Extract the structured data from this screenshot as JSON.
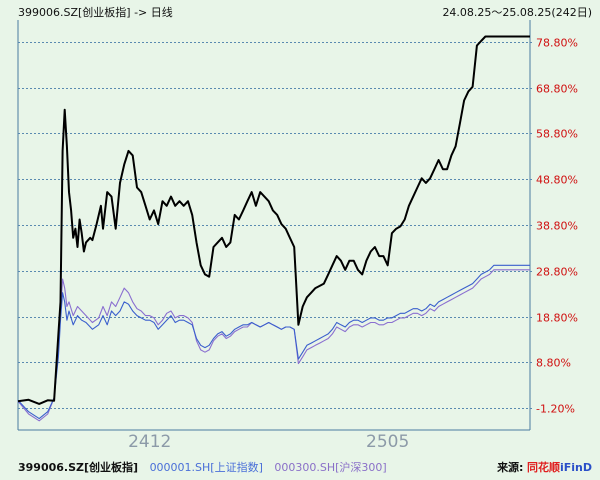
{
  "header": {
    "title": "399006.SZ[创业板指] -> 日线",
    "range": "24.08.25～25.08.25(242日)"
  },
  "footer": {
    "main_series": "399006.SZ[创业板指]",
    "series2": "000001.SH[上证指数]",
    "series3": "000300.SH[沪深300]",
    "source_label": "来源:",
    "source_brand": "同花顺",
    "source_brand2": "iFinD"
  },
  "colors": {
    "background": "#e8f5e8",
    "gridline": "#5a8ab0",
    "tick_text": "#d01010",
    "series_main": "#000000",
    "series_sh": "#3a5fcd",
    "series_hs300": "#8a6fd0"
  },
  "chart_data": {
    "type": "line",
    "yaxis_position": "right",
    "ylim": [
      -6.0,
      83.6
    ],
    "xlim": [
      0,
      241
    ],
    "yticks": [
      78.8,
      68.8,
      58.8,
      48.8,
      38.8,
      28.8,
      18.8,
      8.8,
      -1.2
    ],
    "ytick_labels": [
      "78.80%",
      "68.80%",
      "58.80%",
      "48.80%",
      "38.80%",
      "28.80%",
      "18.80%",
      "8.80%",
      "-1.20%"
    ],
    "xtick_positions": [
      62,
      174
    ],
    "xtick_labels": [
      "2412",
      "2505"
    ],
    "series": [
      {
        "key": "cyb",
        "name": "399006.SZ[创业板指]",
        "x": [
          0,
          5,
          10,
          14,
          17,
          19,
          20,
          21,
          22,
          23,
          24,
          25,
          26,
          27,
          28,
          29,
          30,
          31,
          32,
          34,
          35,
          37,
          39,
          40,
          42,
          44,
          46,
          48,
          50,
          52,
          54,
          56,
          58,
          60,
          62,
          64,
          66,
          68,
          70,
          72,
          74,
          76,
          78,
          80,
          82,
          84,
          86,
          88,
          90,
          92,
          94,
          96,
          98,
          100,
          102,
          104,
          106,
          108,
          110,
          112,
          114,
          116,
          118,
          120,
          122,
          124,
          126,
          128,
          130,
          132,
          134,
          136,
          138,
          140,
          142,
          144,
          146,
          148,
          150,
          152,
          154,
          156,
          158,
          160,
          162,
          164,
          166,
          168,
          170,
          172,
          174,
          176,
          178,
          180,
          182,
          184,
          186,
          188,
          190,
          192,
          194,
          196,
          198,
          200,
          202,
          204,
          206,
          208,
          210,
          212,
          214,
          216,
          218,
          220,
          222,
          224,
          226,
          228,
          230,
          232,
          234,
          236,
          238,
          240,
          241
        ],
        "y": [
          0.3,
          0.6,
          -0.3,
          0.5,
          0.4,
          15.0,
          22.0,
          55.0,
          64.0,
          56.0,
          46.0,
          42.0,
          36.0,
          38.0,
          34.0,
          40.0,
          37.0,
          33.0,
          35.0,
          36.0,
          35.5,
          39.0,
          43.0,
          38.0,
          46.0,
          45.0,
          38.0,
          48.0,
          52.0,
          55.0,
          54.0,
          47.0,
          46.0,
          43.0,
          40.0,
          42.0,
          39.0,
          44.0,
          43.0,
          45.0,
          43.0,
          44.0,
          43.0,
          44.0,
          41.0,
          35.0,
          30.0,
          28.0,
          27.5,
          34.0,
          35.0,
          36.0,
          34.0,
          35.0,
          41.0,
          40.0,
          42.0,
          44.0,
          46.0,
          43.0,
          46.0,
          45.0,
          44.0,
          42.0,
          41.0,
          39.0,
          38.0,
          36.0,
          34.0,
          17.0,
          21.0,
          23.0,
          24.0,
          25.0,
          25.5,
          26.0,
          28.0,
          30.0,
          32.0,
          31.0,
          29.0,
          31.0,
          31.0,
          29.0,
          28.0,
          31.0,
          33.0,
          34.0,
          32.0,
          32.0,
          30.0,
          37.0,
          38.0,
          38.5,
          40.0,
          43.0,
          45.0,
          47.0,
          49.0,
          48.0,
          49.0,
          51.0,
          53.0,
          51.0,
          51.0,
          54.0,
          56.0,
          61.0,
          66.0,
          68.0,
          69.0,
          78.0,
          79.0,
          80.0,
          80.0,
          80.0,
          80.0,
          80.0,
          80.0,
          80.0,
          80.0,
          80.0,
          80.0,
          80.0,
          80.0
        ]
      },
      {
        "key": "sh",
        "name": "000001.SH[上证指数]",
        "x": [
          0,
          5,
          10,
          14,
          17,
          19,
          20,
          21,
          22,
          23,
          24,
          26,
          28,
          30,
          32,
          35,
          38,
          40,
          42,
          44,
          46,
          48,
          50,
          52,
          54,
          56,
          58,
          60,
          62,
          64,
          66,
          68,
          70,
          72,
          74,
          76,
          78,
          80,
          82,
          84,
          86,
          88,
          90,
          92,
          94,
          96,
          98,
          100,
          102,
          104,
          106,
          108,
          110,
          112,
          114,
          116,
          118,
          120,
          122,
          124,
          126,
          128,
          130,
          132,
          134,
          136,
          138,
          140,
          142,
          144,
          146,
          148,
          150,
          152,
          154,
          156,
          158,
          160,
          162,
          164,
          166,
          168,
          170,
          172,
          174,
          176,
          178,
          180,
          182,
          184,
          186,
          188,
          190,
          192,
          194,
          196,
          198,
          200,
          202,
          204,
          206,
          208,
          210,
          212,
          214,
          216,
          218,
          220,
          222,
          224,
          226,
          228,
          230,
          232,
          234,
          236,
          238,
          240,
          241
        ],
        "y": [
          0.5,
          -2.0,
          -3.5,
          -2.0,
          1.0,
          10.0,
          18.0,
          24.0,
          22.0,
          18.0,
          20.0,
          17.0,
          19.0,
          18.0,
          17.5,
          16.0,
          17.0,
          19.0,
          17.0,
          20.0,
          19.0,
          20.0,
          22.0,
          21.5,
          20.0,
          19.0,
          18.5,
          18.0,
          18.0,
          17.5,
          16.0,
          17.0,
          18.0,
          19.0,
          17.5,
          18.0,
          18.0,
          17.5,
          17.0,
          14.0,
          12.5,
          12.0,
          12.5,
          14.0,
          15.0,
          15.5,
          14.5,
          15.0,
          16.0,
          16.5,
          17.0,
          17.0,
          17.5,
          17.0,
          16.5,
          17.0,
          17.5,
          17.0,
          16.5,
          16.0,
          16.5,
          16.5,
          16.0,
          9.5,
          11.0,
          12.5,
          13.0,
          13.5,
          14.0,
          14.5,
          15.0,
          16.0,
          17.5,
          17.0,
          16.5,
          17.5,
          18.0,
          18.0,
          17.5,
          18.0,
          18.5,
          18.5,
          18.0,
          18.0,
          18.5,
          18.5,
          19.0,
          19.5,
          19.5,
          20.0,
          20.5,
          20.5,
          20.0,
          20.5,
          21.5,
          21.0,
          22.0,
          22.5,
          23.0,
          23.5,
          24.0,
          24.5,
          25.0,
          25.5,
          26.0,
          27.0,
          28.0,
          28.5,
          29.0,
          30.0,
          30.0,
          30.0,
          30.0,
          30.0,
          30.0,
          30.0,
          30.0,
          30.0,
          30.0
        ]
      },
      {
        "key": "hs300",
        "name": "000300.SH[沪深300]",
        "x": [
          0,
          5,
          10,
          14,
          17,
          19,
          20,
          21,
          22,
          23,
          24,
          26,
          28,
          30,
          32,
          35,
          38,
          40,
          42,
          44,
          46,
          48,
          50,
          52,
          54,
          56,
          58,
          60,
          62,
          64,
          66,
          68,
          70,
          72,
          74,
          76,
          78,
          80,
          82,
          84,
          86,
          88,
          90,
          92,
          94,
          96,
          98,
          100,
          102,
          104,
          106,
          108,
          110,
          112,
          114,
          116,
          118,
          120,
          122,
          124,
          126,
          128,
          130,
          132,
          134,
          136,
          138,
          140,
          142,
          144,
          146,
          148,
          150,
          152,
          154,
          156,
          158,
          160,
          162,
          164,
          166,
          168,
          170,
          172,
          174,
          176,
          178,
          180,
          182,
          184,
          186,
          188,
          190,
          192,
          194,
          196,
          198,
          200,
          202,
          204,
          206,
          208,
          210,
          212,
          214,
          216,
          218,
          220,
          222,
          224,
          226,
          228,
          230,
          232,
          234,
          236,
          238,
          240,
          241
        ],
        "y": [
          0.3,
          -2.5,
          -4.0,
          -2.5,
          1.0,
          12.0,
          20.0,
          27.0,
          25.0,
          21.0,
          22.0,
          19.0,
          21.0,
          20.0,
          19.0,
          17.5,
          18.5,
          21.0,
          19.0,
          22.0,
          21.0,
          23.0,
          25.0,
          24.0,
          22.0,
          20.5,
          20.0,
          19.0,
          19.0,
          18.5,
          17.0,
          18.0,
          19.5,
          20.0,
          18.5,
          19.0,
          19.0,
          18.5,
          17.5,
          13.5,
          11.5,
          11.0,
          11.5,
          13.5,
          14.5,
          15.0,
          14.0,
          14.5,
          15.5,
          16.0,
          16.5,
          16.5,
          17.5,
          17.0,
          16.5,
          17.0,
          17.5,
          17.0,
          16.5,
          16.0,
          16.5,
          16.5,
          16.0,
          8.5,
          10.0,
          11.5,
          12.0,
          12.5,
          13.0,
          13.5,
          14.0,
          15.0,
          16.5,
          16.0,
          15.5,
          16.5,
          17.0,
          17.0,
          16.5,
          17.0,
          17.5,
          17.5,
          17.0,
          17.0,
          17.5,
          17.5,
          18.0,
          18.5,
          18.5,
          19.0,
          19.5,
          19.5,
          19.0,
          19.5,
          20.5,
          20.0,
          21.0,
          21.5,
          22.0,
          22.5,
          23.0,
          23.5,
          24.0,
          24.5,
          25.0,
          26.0,
          27.0,
          27.5,
          28.0,
          29.0,
          29.0,
          29.0,
          29.0,
          29.0,
          29.0,
          29.0,
          29.0,
          29.0,
          29.0
        ]
      }
    ]
  }
}
